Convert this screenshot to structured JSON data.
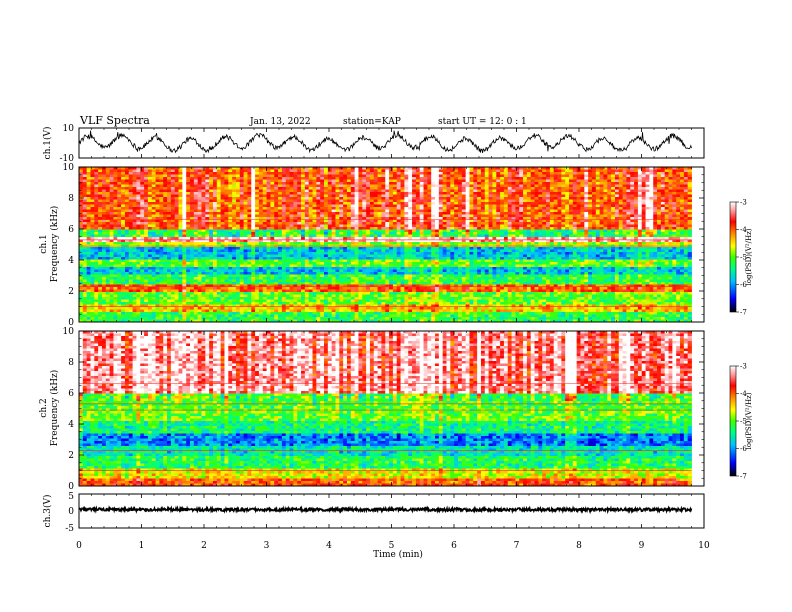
{
  "header": {
    "title": "VLF Spectra",
    "date": "Jan. 13, 2022",
    "station": "station=KAP",
    "start": "start UT =  12: 0  : 1"
  },
  "colors": {
    "colormap": [
      "#000000",
      "#0000ff",
      "#00bfff",
      "#00ff80",
      "#40ff00",
      "#ffff00",
      "#ff8000",
      "#ff0000",
      "#ff9999",
      "#ffffff"
    ]
  },
  "chart_data": [
    {
      "type": "line",
      "name": "ch1-waveform",
      "ylabel": "ch.1(V)",
      "ylim": [
        -10,
        10
      ],
      "yticks": [
        "10",
        "-10"
      ],
      "xlim": [
        0,
        10
      ],
      "note_shape": "noisy oscillation ~ period 0.55 min, amplitude ~4 V, ends at 9.8 min"
    },
    {
      "type": "heatmap",
      "name": "ch1-spectrogram",
      "ylabel": "ch.1\nFrequency (kHz)",
      "ylabel_lines": [
        "ch.1",
        "Frequency (kHz)"
      ],
      "ylim": [
        0,
        10
      ],
      "yticks": [
        "0",
        "2",
        "4",
        "6",
        "8",
        "10"
      ],
      "xlim": [
        0,
        9.8
      ],
      "colorbar": {
        "label": "log(PSD)(V²/Hz)",
        "range": [
          -7,
          -3
        ],
        "ticks": [
          "-3",
          "-4",
          "-5",
          "-6",
          "-7"
        ]
      },
      "bands_khz": [
        {
          "from": 0.0,
          "to": 0.6,
          "level": -5.2
        },
        {
          "from": 0.6,
          "to": 1.2,
          "level": -4.4
        },
        {
          "from": 1.2,
          "to": 2.0,
          "level": -5.0
        },
        {
          "from": 2.0,
          "to": 2.4,
          "level": -4.0
        },
        {
          "from": 2.4,
          "to": 3.0,
          "level": -5.2
        },
        {
          "from": 3.0,
          "to": 3.6,
          "level": -5.8
        },
        {
          "from": 3.6,
          "to": 4.1,
          "level": -5.0
        },
        {
          "from": 4.1,
          "to": 4.8,
          "level": -5.8
        },
        {
          "from": 4.8,
          "to": 5.1,
          "level": -4.8
        },
        {
          "from": 5.1,
          "to": 5.5,
          "level": -3.2
        },
        {
          "from": 5.5,
          "to": 6.0,
          "level": -5.2
        },
        {
          "from": 6.0,
          "to": 10.0,
          "level": -3.9
        }
      ]
    },
    {
      "type": "heatmap",
      "name": "ch2-spectrogram",
      "ylabel": "ch.2\nFrequency (kHz)",
      "ylabel_lines": [
        "ch.2",
        "Frequency (kHz)"
      ],
      "ylim": [
        0,
        10
      ],
      "yticks": [
        "0",
        "2",
        "4",
        "6",
        "8",
        "10"
      ],
      "xlim": [
        0,
        9.8
      ],
      "colorbar": {
        "label": "log(PSD)(V²/Hz)",
        "range": [
          -7,
          -3
        ],
        "ticks": [
          "-3",
          "-4",
          "-5",
          "-6",
          "-7"
        ]
      },
      "bands_khz": [
        {
          "from": 0.0,
          "to": 0.5,
          "level": -4.0
        },
        {
          "from": 0.5,
          "to": 1.2,
          "level": -4.6
        },
        {
          "from": 1.2,
          "to": 2.0,
          "level": -5.3
        },
        {
          "from": 2.0,
          "to": 2.6,
          "level": -5.6
        },
        {
          "from": 2.6,
          "to": 3.4,
          "level": -6.1
        },
        {
          "from": 3.4,
          "to": 4.2,
          "level": -5.4
        },
        {
          "from": 4.2,
          "to": 5.0,
          "level": -5.0
        },
        {
          "from": 5.0,
          "to": 6.0,
          "level": -5.1
        },
        {
          "from": 6.0,
          "to": 10.0,
          "level": -3.4
        }
      ]
    },
    {
      "type": "line",
      "name": "ch3-waveform",
      "ylabel": "ch.3(V)",
      "ylim": [
        -5,
        5
      ],
      "yticks": [
        "5",
        "0",
        "-5"
      ],
      "xlim": [
        0,
        10
      ],
      "note_shape": "flat line near 0 V with small noise, ends at 9.8 min"
    }
  ],
  "xaxis": {
    "label": "Time (min)",
    "ticks": [
      "0",
      "1",
      "2",
      "3",
      "4",
      "5",
      "6",
      "7",
      "8",
      "9",
      "10"
    ],
    "range": [
      0,
      10
    ]
  }
}
